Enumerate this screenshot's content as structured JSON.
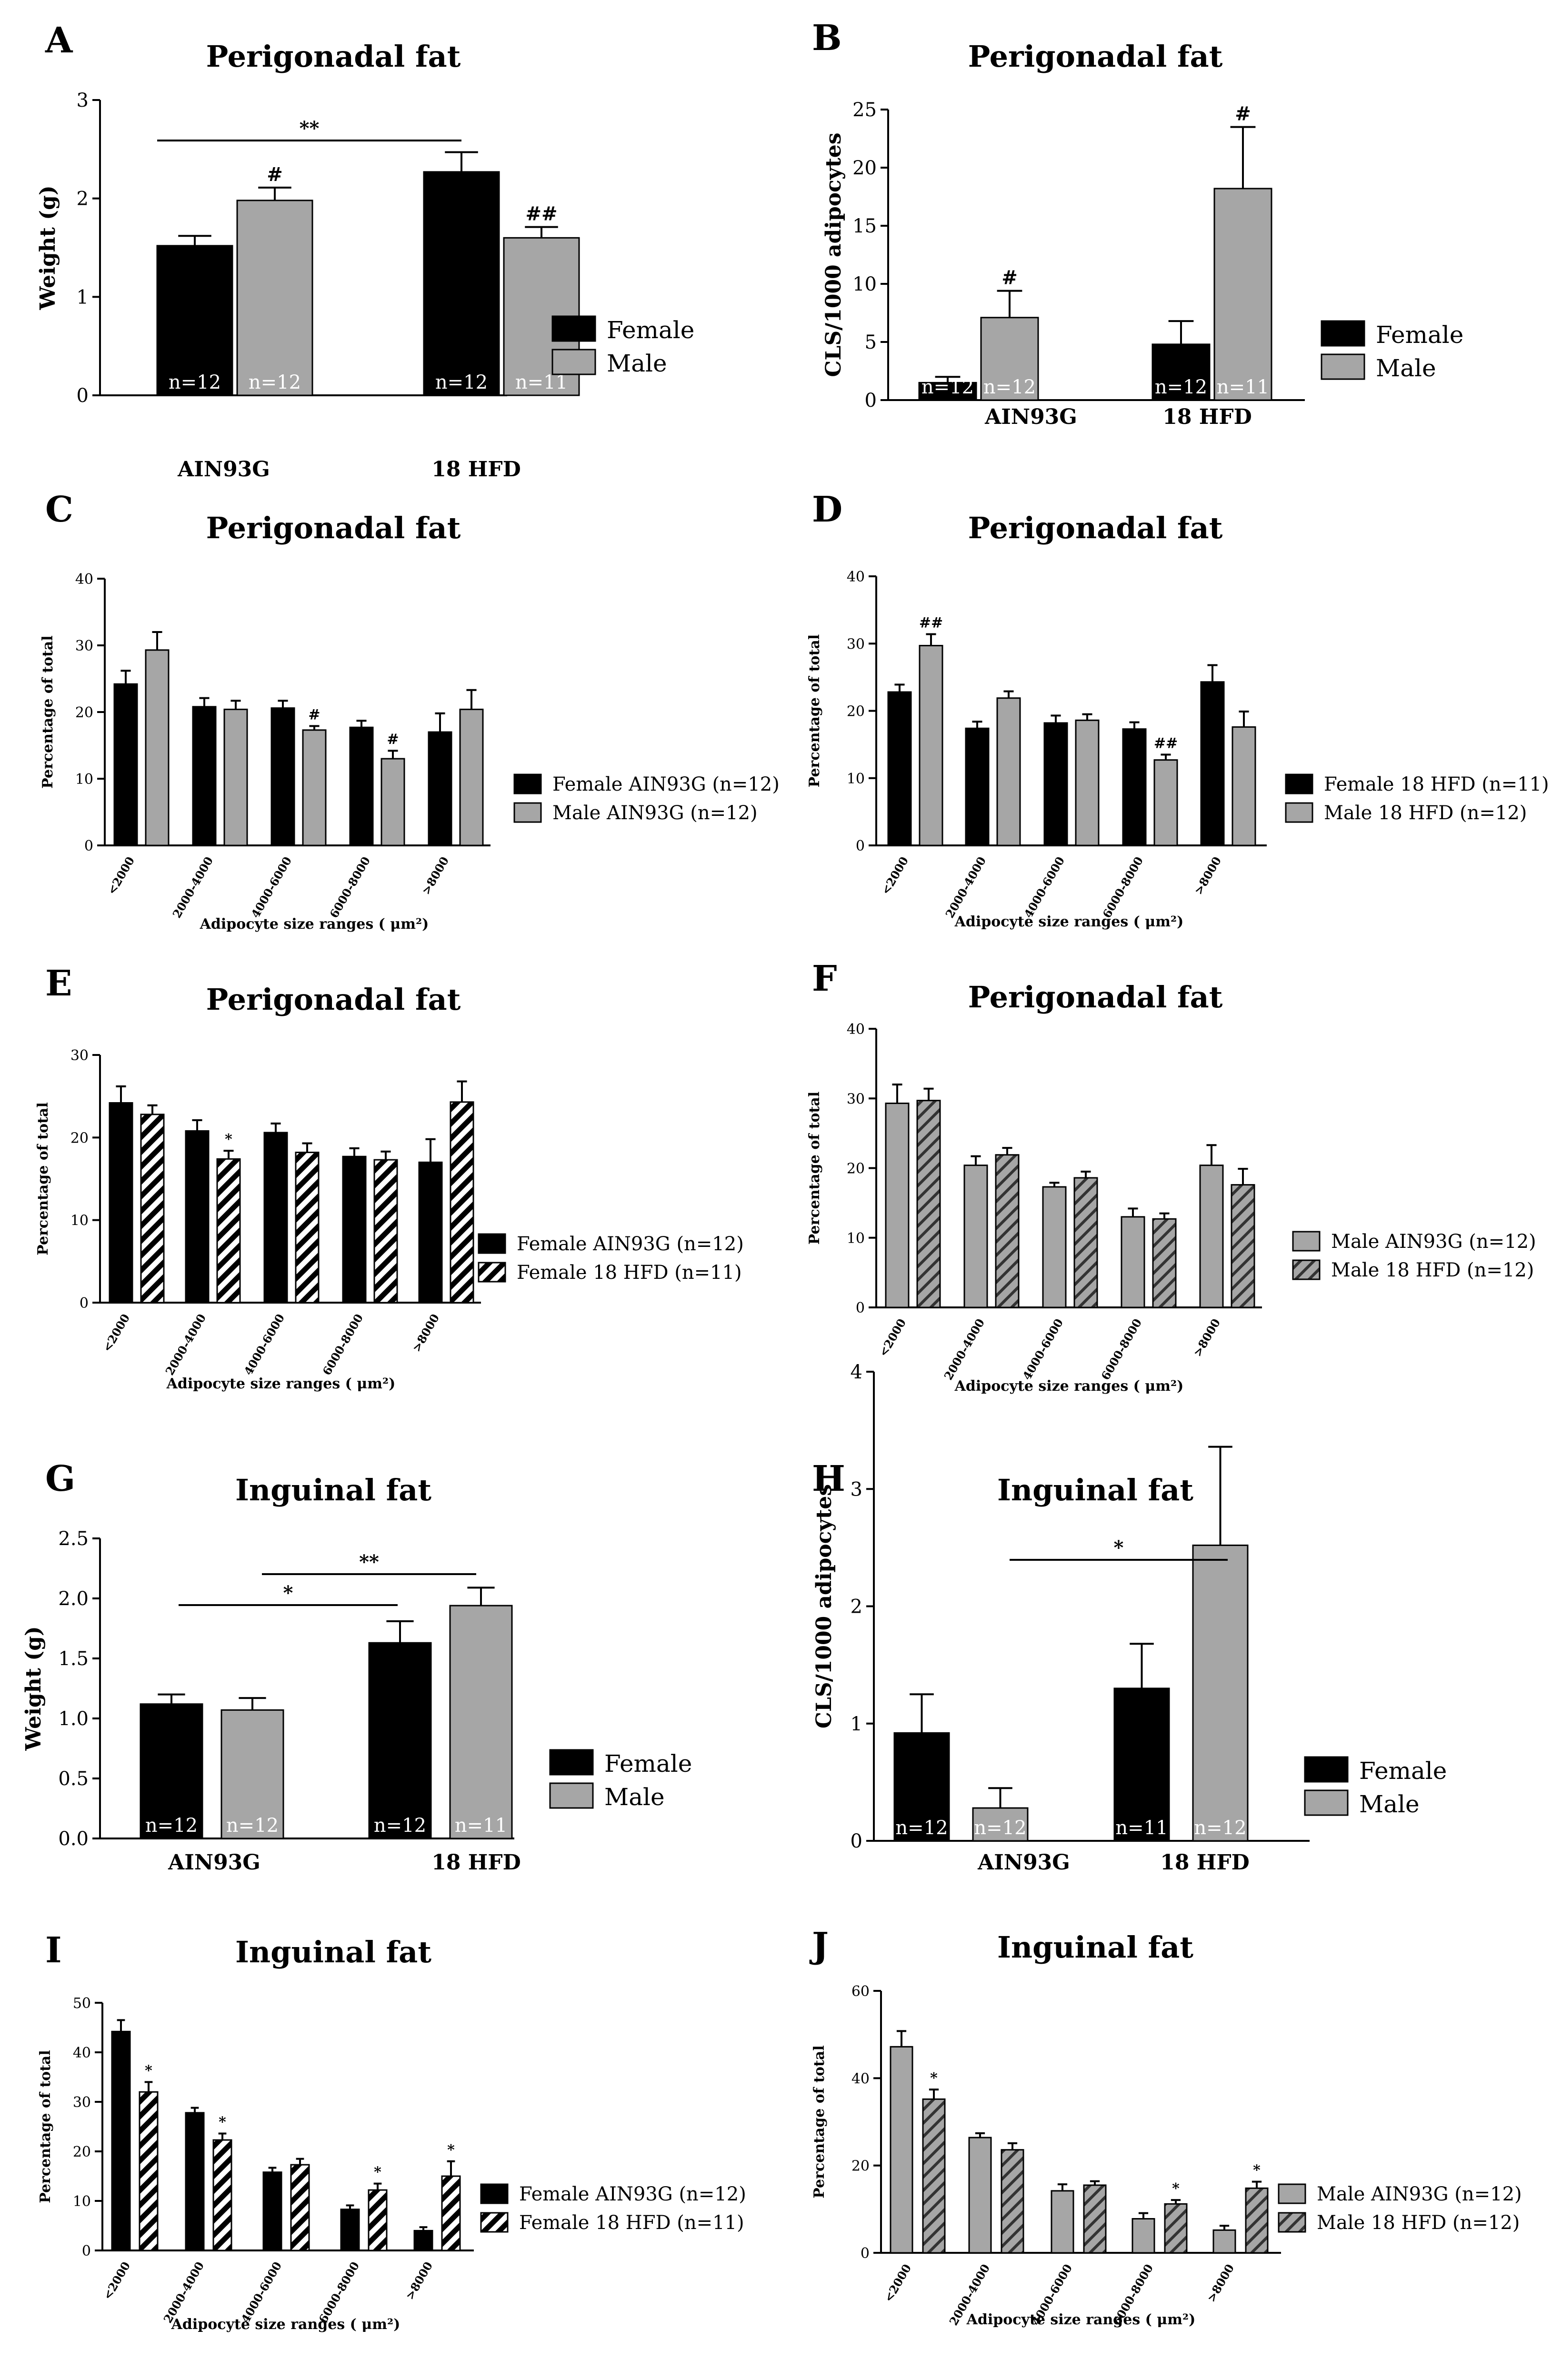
{
  "colors": {
    "female": "#000000",
    "male": "#a6a6a6",
    "hatch_female": "#000000",
    "hatch_male": "#a6a6a6"
  },
  "chart_data": [
    {
      "id": "A",
      "panel": "A",
      "type": "bar",
      "style": "bar_n",
      "title": "Perigonadal fat",
      "ylabel": "Weight (g)",
      "xlabel": "",
      "ylim": [
        0,
        3
      ],
      "yticks": [
        0,
        1,
        2,
        3
      ],
      "ytick_labels": [
        "0",
        "1",
        "2",
        "3"
      ],
      "categories": [
        "AIN93G",
        "18 HFD"
      ],
      "series": [
        {
          "name": "Female",
          "fill": "black",
          "values": [
            1.52,
            2.27
          ],
          "errors": [
            0.1,
            0.2
          ],
          "n": [
            "n=12",
            "n=12"
          ],
          "sig": [
            "",
            ""
          ]
        },
        {
          "name": "Male",
          "fill": "gray",
          "values": [
            1.98,
            1.6
          ],
          "errors": [
            0.13,
            0.11
          ],
          "n": [
            "n=12",
            "n=11"
          ],
          "sig": [
            "#",
            "##"
          ]
        }
      ],
      "brackets": [
        {
          "from": [
            0,
            0
          ],
          "to": [
            1,
            0
          ],
          "label": "**"
        }
      ]
    },
    {
      "id": "B",
      "panel": "B",
      "type": "bar",
      "style": "bar_n",
      "title": "Perigonadal fat",
      "ylabel": "CLS/1000 adipocytes",
      "xlabel": "",
      "ylim": [
        0,
        25
      ],
      "yticks": [
        0,
        5,
        10,
        15,
        20,
        25
      ],
      "ytick_labels": [
        "0",
        "5",
        "10",
        "15",
        "20",
        "25"
      ],
      "categories": [
        "AIN93G",
        "18 HFD"
      ],
      "series": [
        {
          "name": "Female",
          "fill": "black",
          "values": [
            1.5,
            4.8
          ],
          "errors": [
            0.5,
            2.0
          ],
          "n": [
            "n=12",
            "n=12"
          ],
          "sig": [
            "",
            ""
          ]
        },
        {
          "name": "Male",
          "fill": "gray",
          "values": [
            7.1,
            18.2
          ],
          "errors": [
            2.3,
            5.3
          ],
          "n": [
            "n=12",
            "n=11"
          ],
          "sig": [
            "#",
            "#"
          ]
        }
      ],
      "brackets": []
    },
    {
      "id": "C",
      "panel": "C",
      "type": "bar",
      "style": "bar_size",
      "title": "Perigonadal fat",
      "ylabel": "Percentage of total",
      "xlabel": "Adipocyte size ranges ( μm²)",
      "ylim": [
        0,
        40
      ],
      "yticks": [
        0,
        10,
        20,
        30,
        40
      ],
      "ytick_labels": [
        "0",
        "10",
        "20",
        "30",
        "40"
      ],
      "categories": [
        "<2000",
        "2000-4000",
        "4000-6000",
        "6000-8000",
        ">8000"
      ],
      "series": [
        {
          "name": "Female AIN93G (n=12)",
          "fill": "black",
          "values": [
            24.2,
            20.8,
            20.6,
            17.7,
            17.0
          ],
          "errors": [
            2.0,
            1.3,
            1.1,
            1.0,
            2.8
          ],
          "sig": [
            "",
            "",
            "",
            "",
            ""
          ]
        },
        {
          "name": "Male AIN93G (n=12)",
          "fill": "gray",
          "values": [
            29.3,
            20.4,
            17.3,
            13.0,
            20.4
          ],
          "errors": [
            2.7,
            1.3,
            0.6,
            1.2,
            2.9
          ],
          "sig": [
            "",
            "",
            "#",
            "#",
            ""
          ]
        }
      ],
      "brackets": []
    },
    {
      "id": "D",
      "panel": "D",
      "type": "bar",
      "style": "bar_size",
      "title": "Perigonadal fat",
      "ylabel": "Percentage of total",
      "xlabel": "Adipocyte size ranges ( μm²)",
      "ylim": [
        0,
        40
      ],
      "yticks": [
        0,
        10,
        20,
        30,
        40
      ],
      "ytick_labels": [
        "0",
        "10",
        "20",
        "30",
        "40"
      ],
      "categories": [
        "<2000",
        "2000-4000",
        "4000-6000",
        "6000-8000",
        ">8000"
      ],
      "series": [
        {
          "name": "Female 18 HFD (n=11)",
          "fill": "black",
          "values": [
            22.8,
            17.4,
            18.2,
            17.3,
            24.3
          ],
          "errors": [
            1.1,
            1.0,
            1.1,
            1.0,
            2.5
          ],
          "sig": [
            "",
            "",
            "",
            "",
            ""
          ]
        },
        {
          "name": "Male 18 HFD (n=12)",
          "fill": "gray",
          "values": [
            29.7,
            21.9,
            18.6,
            12.7,
            17.6
          ],
          "errors": [
            1.7,
            1.0,
            0.9,
            0.8,
            2.3
          ],
          "sig": [
            "##",
            "",
            "",
            "##",
            ""
          ]
        }
      ],
      "brackets": []
    },
    {
      "id": "E",
      "panel": "E",
      "type": "bar",
      "style": "bar_size",
      "title": "Perigonadal fat",
      "ylabel": "Percentage of total",
      "xlabel": "Adipocyte size ranges ( μm²)",
      "ylim": [
        0,
        30
      ],
      "yticks": [
        0,
        10,
        20,
        30
      ],
      "ytick_labels": [
        "0",
        "10",
        "20",
        "30"
      ],
      "categories": [
        "<2000",
        "2000-4000",
        "4000-6000",
        "6000-8000",
        ">8000"
      ],
      "series": [
        {
          "name": "Female AIN93G (n=12)",
          "fill": "black",
          "values": [
            24.2,
            20.8,
            20.6,
            17.7,
            17.0
          ],
          "errors": [
            2.0,
            1.3,
            1.1,
            1.0,
            2.8
          ],
          "sig": [
            "",
            "",
            "",
            "",
            ""
          ]
        },
        {
          "name": "Female 18 HFD (n=11)",
          "fill": "hatch_black",
          "values": [
            22.8,
            17.4,
            18.2,
            17.3,
            24.3
          ],
          "errors": [
            1.1,
            1.0,
            1.1,
            1.0,
            2.5
          ],
          "sig": [
            "",
            "*",
            "",
            "",
            ""
          ]
        }
      ],
      "brackets": []
    },
    {
      "id": "F",
      "panel": "F",
      "type": "bar",
      "style": "bar_size",
      "title": "Perigonadal fat",
      "ylabel": "Percentage of total",
      "xlabel": "Adipocyte size ranges ( μm²)",
      "ylim": [
        0,
        40
      ],
      "yticks": [
        0,
        10,
        20,
        30,
        40
      ],
      "ytick_labels": [
        "0",
        "10",
        "20",
        "30",
        "40"
      ],
      "categories": [
        "<2000",
        "2000-4000",
        "4000-6000",
        "6000-8000",
        ">8000"
      ],
      "series": [
        {
          "name": "Male AIN93G (n=12)",
          "fill": "gray",
          "values": [
            29.3,
            20.4,
            17.3,
            13.0,
            20.4
          ],
          "errors": [
            2.7,
            1.3,
            0.6,
            1.2,
            2.9
          ],
          "sig": [
            "",
            "",
            "",
            "",
            ""
          ]
        },
        {
          "name": "Male 18 HFD (n=12)",
          "fill": "hatch_gray",
          "values": [
            29.7,
            21.9,
            18.6,
            12.7,
            17.6
          ],
          "errors": [
            1.7,
            1.0,
            0.9,
            0.8,
            2.3
          ],
          "sig": [
            "",
            "",
            "",
            "",
            ""
          ]
        }
      ],
      "brackets": []
    },
    {
      "id": "G",
      "panel": "G",
      "type": "bar",
      "style": "bar_n",
      "title": "Inguinal fat",
      "ylabel": "Weight (g)",
      "xlabel": "",
      "ylim": [
        0,
        2.5
      ],
      "yticks": [
        0,
        0.5,
        1.0,
        1.5,
        2.0,
        2.5
      ],
      "ytick_labels": [
        "0.0",
        "0.5",
        "1.0",
        "1.5",
        "2.0",
        "2.5"
      ],
      "categories": [
        "AIN93G",
        "18 HFD"
      ],
      "series": [
        {
          "name": "Female",
          "fill": "black",
          "values": [
            1.12,
            1.63
          ],
          "errors": [
            0.08,
            0.18
          ],
          "n": [
            "n=12",
            "n=12"
          ],
          "sig": [
            "",
            ""
          ]
        },
        {
          "name": "Male",
          "fill": "gray",
          "values": [
            1.07,
            1.94
          ],
          "errors": [
            0.1,
            0.15
          ],
          "n": [
            "n=12",
            "n=11"
          ],
          "sig": [
            "",
            ""
          ]
        }
      ],
      "brackets": [
        {
          "from": [
            0,
            0
          ],
          "to": [
            1,
            0
          ],
          "label": "*",
          "level": 0
        },
        {
          "from": [
            0,
            1
          ],
          "to": [
            1,
            1
          ],
          "label": "**",
          "level": 1
        }
      ]
    },
    {
      "id": "H",
      "panel": "H",
      "type": "bar",
      "style": "bar_n",
      "title": "Inguinal fat",
      "ylabel": "CLS/1000 adipocytes",
      "xlabel": "",
      "ylim": [
        0,
        4
      ],
      "yticks": [
        0,
        1,
        2,
        3,
        4
      ],
      "ytick_labels": [
        "0",
        "1",
        "2",
        "3",
        "4"
      ],
      "categories": [
        "AIN93G",
        "18 HFD"
      ],
      "series": [
        {
          "name": "Female",
          "fill": "black",
          "values": [
            0.92,
            1.3
          ],
          "errors": [
            0.33,
            0.38
          ],
          "n": [
            "n=12",
            "n=11"
          ],
          "sig": [
            "",
            ""
          ]
        },
        {
          "name": "Male",
          "fill": "gray",
          "values": [
            0.28,
            2.52
          ],
          "errors": [
            0.17,
            0.84
          ],
          "n": [
            "n=12",
            "n=12"
          ],
          "sig": [
            "",
            ""
          ]
        }
      ],
      "brackets": [
        {
          "from": [
            0,
            1
          ],
          "to": [
            1,
            1
          ],
          "label": "*"
        }
      ]
    },
    {
      "id": "I",
      "panel": "I",
      "type": "bar",
      "style": "bar_size",
      "title": "Inguinal fat",
      "ylabel": "Percentage of total",
      "xlabel": "Adipocyte size ranges ( μm²)",
      "ylim": [
        0,
        50
      ],
      "yticks": [
        0,
        10,
        20,
        30,
        40,
        50
      ],
      "ytick_labels": [
        "0",
        "10",
        "20",
        "30",
        "40",
        "50"
      ],
      "categories": [
        "<2000",
        "2000-4000",
        "4000-6000",
        "6000-8000",
        ">8000"
      ],
      "series": [
        {
          "name": "Female AIN93G (n=12)",
          "fill": "black",
          "values": [
            44.2,
            27.8,
            15.8,
            8.3,
            4.0
          ],
          "errors": [
            2.3,
            1.0,
            0.9,
            0.8,
            0.7
          ],
          "sig": [
            "",
            "",
            "",
            "",
            ""
          ]
        },
        {
          "name": "Female 18 HFD (n=11)",
          "fill": "hatch_black",
          "values": [
            32.0,
            22.3,
            17.3,
            12.2,
            15.0
          ],
          "errors": [
            2.0,
            1.3,
            1.2,
            1.3,
            3.0
          ],
          "sig": [
            "*",
            "*",
            "",
            "*",
            "*"
          ]
        }
      ],
      "brackets": []
    },
    {
      "id": "J",
      "panel": "J",
      "type": "bar",
      "style": "bar_size",
      "title": "Inguinal fat",
      "ylabel": "Percentage of total",
      "xlabel": "Adipocyte size ranges ( μm²)",
      "ylim": [
        0,
        60
      ],
      "yticks": [
        0,
        20,
        40,
        60
      ],
      "ytick_labels": [
        "0",
        "20",
        "40",
        "60"
      ],
      "categories": [
        "<2000",
        "2000-4000",
        "4000-6000",
        "6000-8000",
        ">8000"
      ],
      "series": [
        {
          "name": "Male AIN93G (n=12)",
          "fill": "gray",
          "values": [
            47.2,
            26.4,
            14.2,
            7.8,
            5.2
          ],
          "errors": [
            3.6,
            1.0,
            1.5,
            1.3,
            1.0
          ],
          "sig": [
            "",
            "",
            "",
            "",
            ""
          ]
        },
        {
          "name": "Male 18 HFD (n=12)",
          "fill": "hatch_gray",
          "values": [
            35.2,
            23.6,
            15.5,
            11.2,
            14.8
          ],
          "errors": [
            2.2,
            1.5,
            0.9,
            0.9,
            1.5
          ],
          "sig": [
            "*",
            "",
            "",
            "*",
            "*"
          ]
        }
      ],
      "brackets": []
    }
  ]
}
